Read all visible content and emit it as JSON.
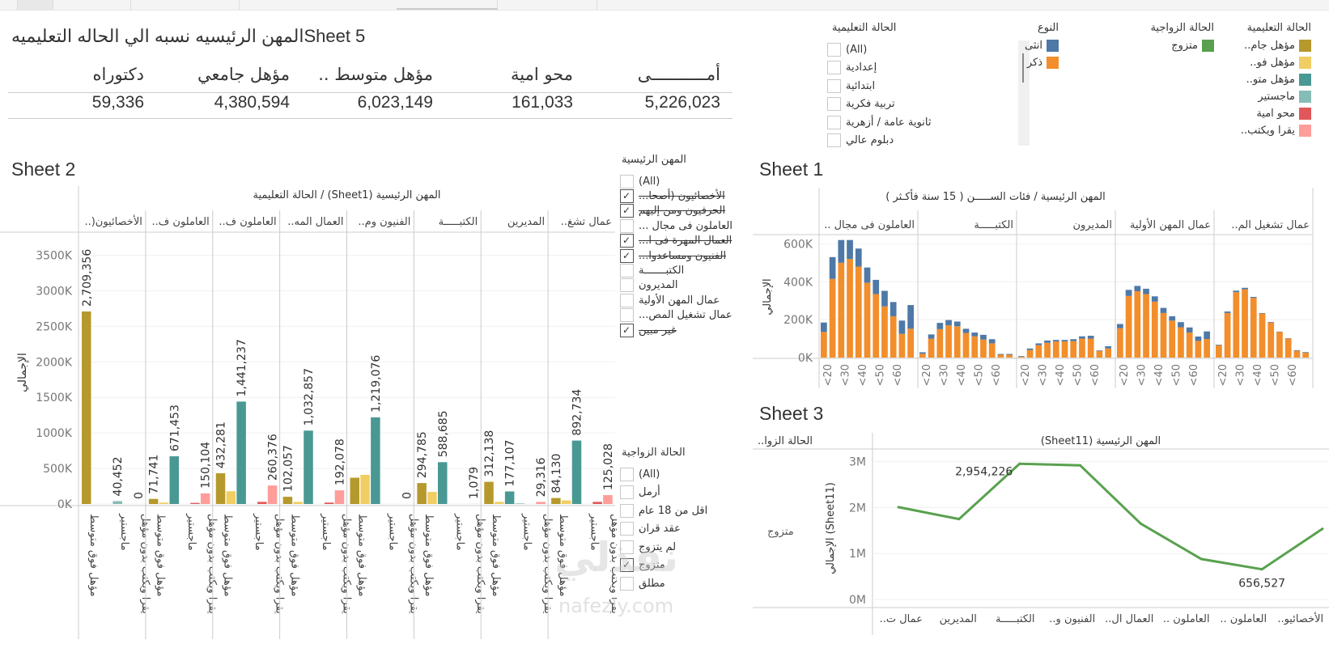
{
  "topbar": {
    "tabs": [
      "",
      "",
      "",
      "",
      ""
    ]
  },
  "sheet5": {
    "title": "المهن الرئيسيه نسبه الي الحاله التعليميهSheet 5",
    "columns": [
      {
        "header": "أمـــــــــــى",
        "value": "5,226,023"
      },
      {
        "header": "محو امية",
        "value": "161,033"
      },
      {
        "header": "مؤهل متوسط ..",
        "value": "6,023,149"
      },
      {
        "header": "مؤهل جامعي",
        "value": "4,380,594"
      },
      {
        "header": "دكتوراه",
        "value": "59,336"
      }
    ]
  },
  "filters": {
    "education": {
      "title": "الحالة التعليمية",
      "items": [
        {
          "label": "(All)",
          "checked": false
        },
        {
          "label": "إعدادية",
          "checked": false
        },
        {
          "label": "ابتدائية",
          "checked": false
        },
        {
          "label": "تربية فكرية",
          "checked": false
        },
        {
          "label": "ثانوية عامة / أزهرية",
          "checked": false
        },
        {
          "label": "دبلوم عالي",
          "checked": false
        }
      ]
    },
    "occupation": {
      "title": "المهن الرئيسية",
      "items": [
        {
          "label": "(All)",
          "checked": false,
          "struck": false
        },
        {
          "label": "الأخصائيون (أصحا...",
          "checked": true,
          "struck": true
        },
        {
          "label": "الحرفيون ومن إليهم",
          "checked": true,
          "struck": true
        },
        {
          "label": "العاملون فى مجال ...",
          "checked": false,
          "struck": false
        },
        {
          "label": "العمال المهرة فى ا...",
          "checked": true,
          "struck": true
        },
        {
          "label": "الفنيون ومساعدوا...",
          "checked": true,
          "struck": true
        },
        {
          "label": "الكتبـــــــة",
          "checked": false,
          "struck": false
        },
        {
          "label": "المديرون",
          "checked": false,
          "struck": false
        },
        {
          "label": "عمال المهن الأولية",
          "checked": false,
          "struck": false
        },
        {
          "label": "عمال تشغيل المص...",
          "checked": false,
          "struck": false
        },
        {
          "label": "غير مبين",
          "checked": true,
          "struck": true
        }
      ]
    },
    "marital": {
      "title": "الحالة الزواجية",
      "items": [
        {
          "label": "(All)",
          "checked": false
        },
        {
          "label": "أرمل",
          "checked": false
        },
        {
          "label": "اقل من 18 عام",
          "checked": false
        },
        {
          "label": "عقد قران",
          "checked": false
        },
        {
          "label": "لم يتزوج",
          "checked": false
        },
        {
          "label": "متزوج",
          "checked": true
        },
        {
          "label": "مطلق",
          "checked": false
        }
      ]
    }
  },
  "legends": {
    "gender": {
      "title": "النوع",
      "items": [
        {
          "label": "انثى",
          "color": "#4e79a7"
        },
        {
          "label": "ذكر",
          "color": "#f28e2b"
        }
      ]
    },
    "marital": {
      "title": "الحالة الزواجية",
      "items": [
        {
          "label": "متزوج",
          "color": "#59a14f"
        }
      ]
    },
    "education": {
      "title": "الحالة التعليمية",
      "items": [
        {
          "label": "مؤهل جام..",
          "color": "#b6992d"
        },
        {
          "label": "مؤهل فو..",
          "color": "#f1ce63"
        },
        {
          "label": "مؤهل متو..",
          "color": "#499894"
        },
        {
          "label": "ماجستير",
          "color": "#86bcb6"
        },
        {
          "label": "محو امية",
          "color": "#e15759"
        },
        {
          "label": "يقرا ويكتب..",
          "color": "#ff9d9a"
        }
      ]
    }
  },
  "chart_data": [
    {
      "id": "sheet2",
      "title": "Sheet 2",
      "type": "bar",
      "header": "المهن الرئيسية (Sheet1)  /  الحالة التعليمية",
      "ylabel": "الإجمالي",
      "ylim": [
        0,
        3700000
      ],
      "yticks": [
        {
          "v": 0,
          "l": "0K"
        },
        {
          "v": 500000,
          "l": "500K"
        },
        {
          "v": 1000000,
          "l": "1000K"
        },
        {
          "v": 1500000,
          "l": "1500K"
        },
        {
          "v": 2000000,
          "l": "2000K"
        },
        {
          "v": 2500000,
          "l": "2500K"
        },
        {
          "v": 3000000,
          "l": "3000K"
        },
        {
          "v": 3500000,
          "l": "3500K"
        }
      ],
      "series_order": [
        "مؤهل جامعي",
        "مؤهل فوق متوسط",
        "مؤهل متوسط",
        "ماجستير",
        "محو امية",
        "يقرا ويكتب بدون مؤهل"
      ],
      "series_colors": [
        "#b6992d",
        "#f1ce63",
        "#499894",
        "#86bcb6",
        "#e15759",
        "#ff9d9a"
      ],
      "axis_labels": [
        "مؤهل فوق متوسط",
        "ماجستير",
        "يقرا ويكتب بدون مؤهل"
      ],
      "panels": [
        {
          "label": "الأخصائيون(..",
          "values": [
            2709356,
            0,
            0,
            40452,
            0,
            0
          ],
          "labels": [
            "2,709,356",
            "",
            "",
            "40,452",
            "",
            "0"
          ]
        },
        {
          "label": "العاملون ف..",
          "values": [
            71741,
            20000,
            671453,
            0,
            15000,
            150104
          ],
          "labels": [
            "71,741",
            "",
            "671,453",
            "",
            "",
            "150,104"
          ]
        },
        {
          "label": "العاملون ف..",
          "values": [
            432281,
            180000,
            1441237,
            0,
            30000,
            260376
          ],
          "labels": [
            "432,281",
            "",
            "1,441,237",
            "",
            "",
            "260,376"
          ]
        },
        {
          "label": "العمال المه..",
          "values": [
            102057,
            30000,
            1032857,
            0,
            20000,
            192078
          ],
          "labels": [
            "102,057",
            "",
            "1,032,857",
            "",
            "",
            "192,078"
          ]
        },
        {
          "label": "الفنيون وم..",
          "values": [
            370000,
            410000,
            1219076,
            0,
            0,
            0
          ],
          "labels": [
            "",
            "",
            "1,219,076",
            "",
            "",
            "0"
          ]
        },
        {
          "label": "الكتبـــــة",
          "values": [
            294785,
            170000,
            588685,
            0,
            0,
            1079
          ],
          "labels": [
            "294,785",
            "",
            "588,685",
            "",
            "",
            "1,079"
          ]
        },
        {
          "label": "المديرين",
          "values": [
            312138,
            30000,
            177107,
            8000,
            0,
            29316
          ],
          "labels": [
            "312,138",
            "",
            "177,107",
            "",
            "",
            "29,316"
          ]
        },
        {
          "label": "عمال تشغ..",
          "values": [
            84130,
            50000,
            892734,
            0,
            30000,
            125028
          ],
          "labels": [
            "84,130",
            "",
            "892,734",
            "",
            "",
            "125,028"
          ]
        }
      ]
    },
    {
      "id": "sheet1",
      "title": "Sheet 1",
      "type": "bar",
      "stacked": true,
      "header": "المهن الرئيسية  /  فئات الســـــن ( 15 سنة فأكـثر )",
      "ylabel": "الإجمالي",
      "ylim": [
        0,
        640000
      ],
      "yticks": [
        {
          "v": 0,
          "l": "0K"
        },
        {
          "v": 200000,
          "l": "200K"
        },
        {
          "v": 400000,
          "l": "400K"
        },
        {
          "v": 600000,
          "l": "600K"
        }
      ],
      "xticks": [
        "<20",
        "<30",
        "<40",
        "<50",
        "<60"
      ],
      "series": [
        {
          "name": "ذكر",
          "color": "#f28e2b"
        },
        {
          "name": "انثى",
          "color": "#4e79a7"
        }
      ],
      "panels": [
        {
          "label": "العاملون فى مجال ..",
          "male": [
            135000,
            415000,
            500000,
            520000,
            480000,
            395000,
            335000,
            270000,
            218000,
            125000,
            152000
          ],
          "female": [
            50000,
            115000,
            120000,
            100000,
            95000,
            80000,
            75000,
            82000,
            75000,
            70000,
            125000
          ]
        },
        {
          "label": "الكتبـــــة",
          "male": [
            20000,
            100000,
            150000,
            170000,
            165000,
            130000,
            112000,
            95000,
            75000,
            15000,
            15000
          ],
          "female": [
            8000,
            22000,
            33000,
            28000,
            25000,
            22000,
            20000,
            25000,
            22000,
            4000,
            4000
          ]
        },
        {
          "label": "المديرون",
          "male": [
            5000,
            40000,
            65000,
            78000,
            85000,
            85000,
            87000,
            100000,
            100000,
            35000,
            48000
          ],
          "female": [
            3000,
            8000,
            10000,
            12000,
            8000,
            8000,
            10000,
            12000,
            15000,
            3000,
            12000
          ]
        },
        {
          "label": "عمال المهن الأولية",
          "male": [
            155000,
            325000,
            350000,
            335000,
            295000,
            235000,
            195000,
            160000,
            132000,
            88000,
            98000
          ],
          "female": [
            22000,
            32000,
            28000,
            28000,
            28000,
            27000,
            23000,
            27000,
            27000,
            23000,
            40000
          ]
        },
        {
          "label": "عمال تشغيل الم..",
          "male": [
            65000,
            235000,
            345000,
            360000,
            315000,
            232000,
            185000,
            135000,
            100000,
            36000,
            26000
          ],
          "female": [
            3000,
            8000,
            8000,
            8000,
            5000,
            3000,
            3000,
            2000,
            2000,
            3000,
            3000
          ]
        }
      ]
    },
    {
      "id": "sheet3",
      "title": "Sheet 3",
      "type": "line",
      "header": "المهن الرئيسية (Sheet11)",
      "row_header": "الحالة الزوا..",
      "row_label": "متزوج",
      "ylabel": "الإجمالي (Sheet11)",
      "ylim": [
        0,
        3100000
      ],
      "yticks": [
        {
          "v": 0,
          "l": "0M"
        },
        {
          "v": 1000000,
          "l": "1M"
        },
        {
          "v": 2000000,
          "l": "2M"
        },
        {
          "v": 3000000,
          "l": "3M"
        }
      ],
      "categories": [
        "الأخصائيو..",
        "العاملون ..",
        "العاملون ..",
        "العمال ال..",
        "الفنيون و..",
        "الكتبـــــة",
        "المديرين",
        "عمال ت.."
      ],
      "values": [
        2010000,
        1750000,
        2954226,
        2920000,
        1650000,
        880000,
        656527,
        1540000
      ],
      "color": "#59a14f",
      "annotations": [
        {
          "index": 2,
          "label": "2,954,226"
        },
        {
          "index": 6,
          "label": "656,527"
        }
      ]
    }
  ],
  "watermark": {
    "arabic": "نفذلي",
    "latin": "nafezly.com"
  }
}
